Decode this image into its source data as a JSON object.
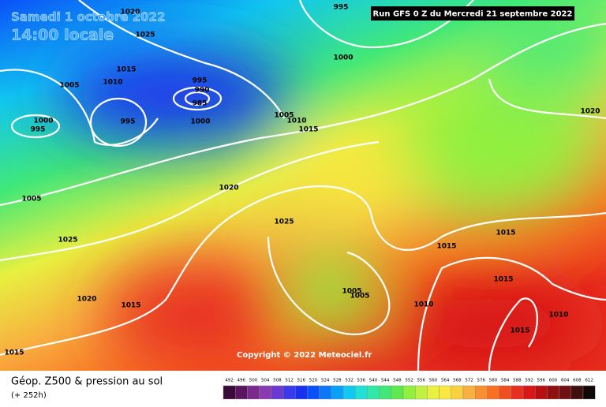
{
  "header": {
    "valid_date": "Samedi 1 octobre 2022",
    "local_time": "14:00 locale",
    "run": "Run GFS 0 Z du Mercredi 21 septembre 2022"
  },
  "copyright": "Copyright © 2022 Meteociel.fr",
  "footer": {
    "title": "Géop. Z500 & pression au sol",
    "lead": "(+ 252h)"
  },
  "scale": {
    "labels": [
      492,
      496,
      500,
      504,
      508,
      512,
      516,
      520,
      524,
      528,
      532,
      536,
      540,
      544,
      548,
      552,
      556,
      560,
      564,
      568,
      572,
      576,
      580,
      584,
      588,
      592,
      596,
      600,
      604,
      608,
      612
    ],
    "colors": [
      "#3a0a3a",
      "#5a1460",
      "#7a2a8a",
      "#8a3ab0",
      "#6a3ad0",
      "#3a3ae8",
      "#1a30f0",
      "#0a50f8",
      "#0a78f8",
      "#0aa0f8",
      "#10c8f0",
      "#20e0d8",
      "#30e8a8",
      "#40e878",
      "#60e850",
      "#90f040",
      "#c0f040",
      "#e8f040",
      "#f8e840",
      "#f8d040",
      "#f8b040",
      "#f89030",
      "#f87020",
      "#f05020",
      "#e83020",
      "#d81818",
      "#b81010",
      "#901010",
      "#701010",
      "#401010",
      "#100808"
    ]
  },
  "isobar_labels": [
    "1020",
    "995",
    "1025",
    "1000",
    "1015",
    "1005",
    "1010",
    "995",
    "990",
    "985",
    "1000",
    "995",
    "995",
    "1000",
    "1005",
    "1010",
    "1015",
    "1020",
    "1020",
    "1005",
    "1025",
    "1025",
    "1015",
    "1015",
    "1015",
    "1005",
    "1005",
    "1020",
    "1015",
    "1010",
    "1010",
    "1015",
    "1015"
  ]
}
